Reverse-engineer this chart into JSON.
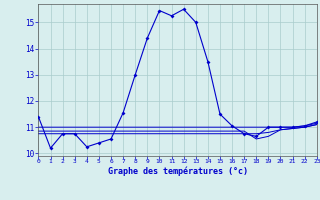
{
  "xlabel": "Graphe des températures (°c)",
  "hours": [
    0,
    1,
    2,
    3,
    4,
    5,
    6,
    7,
    8,
    9,
    10,
    11,
    12,
    13,
    14,
    15,
    16,
    17,
    18,
    19,
    20,
    21,
    22,
    23
  ],
  "temp_main": [
    11.4,
    10.2,
    10.75,
    10.75,
    10.25,
    10.4,
    10.55,
    11.55,
    13.0,
    14.4,
    15.45,
    15.25,
    15.5,
    15.0,
    13.5,
    11.5,
    11.05,
    10.75,
    10.65,
    11.0,
    11.0,
    11.0,
    11.05,
    11.2
  ],
  "temp_line2": [
    10.75,
    10.75,
    10.75,
    10.75,
    10.75,
    10.75,
    10.75,
    10.75,
    10.75,
    10.75,
    10.75,
    10.75,
    10.75,
    10.75,
    10.75,
    10.75,
    10.75,
    10.75,
    10.75,
    10.8,
    10.9,
    10.95,
    11.0,
    11.1
  ],
  "temp_line3": [
    10.85,
    10.85,
    10.85,
    10.85,
    10.85,
    10.85,
    10.85,
    10.85,
    10.85,
    10.85,
    10.85,
    10.85,
    10.85,
    10.85,
    10.85,
    10.85,
    10.85,
    10.85,
    10.55,
    10.65,
    10.9,
    10.95,
    11.0,
    11.1
  ],
  "temp_line4": [
    11.0,
    11.0,
    11.0,
    11.0,
    11.0,
    11.0,
    11.0,
    11.0,
    11.0,
    11.0,
    11.0,
    11.0,
    11.0,
    11.0,
    11.0,
    11.0,
    11.0,
    11.0,
    11.0,
    11.0,
    11.0,
    11.0,
    11.05,
    11.15
  ],
  "line_color": "#0000cc",
  "bg_color": "#d8eeee",
  "grid_color": "#aacccc",
  "xlim": [
    0,
    23
  ],
  "ylim": [
    9.9,
    15.7
  ],
  "yticks": [
    10,
    11,
    12,
    13,
    14,
    15
  ],
  "xticks": [
    0,
    1,
    2,
    3,
    4,
    5,
    6,
    7,
    8,
    9,
    10,
    11,
    12,
    13,
    14,
    15,
    16,
    17,
    18,
    19,
    20,
    21,
    22,
    23
  ]
}
